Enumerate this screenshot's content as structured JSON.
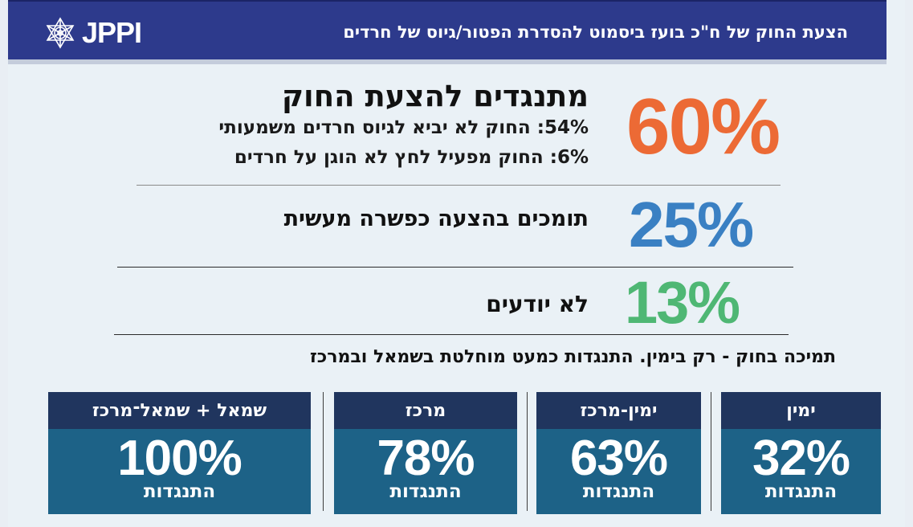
{
  "header": {
    "logo_text": "JPPI",
    "title": "הצעת החוק של ח\"כ בועז ביסמוט להסדרת הפטור/גיוס של חרדים"
  },
  "rows": [
    {
      "pct": "60%",
      "color": "#ec6a35",
      "label": "מתנגדים להצעת החוק",
      "sub": [
        "54%: החוק לא יביא לגיוס חרדים משמעותי",
        "6%: החוק מפעיל לחץ לא הוגן על חרדים"
      ]
    },
    {
      "pct": "25%",
      "color": "#3a80c3",
      "label": "תומכים בהצעה כפשרה מעשית"
    },
    {
      "pct": "13%",
      "color": "#4fb774",
      "label": "לא יודעים"
    }
  ],
  "section_title": "תמיכה בחוק - רק בימין.  התנגדות כמעט מוחלטת בשמאל ובמרכז",
  "groups": [
    {
      "name": "ימין",
      "pct": "32%",
      "caption": "התנגדות"
    },
    {
      "name": "ימין-מרכז",
      "pct": "63%",
      "caption": "התנגדות"
    },
    {
      "name": "מרכז",
      "pct": "78%",
      "caption": "התנגדות"
    },
    {
      "name": "שמאל + שמאל־מרכז",
      "pct": "100%",
      "caption": "התנגדות"
    }
  ]
}
